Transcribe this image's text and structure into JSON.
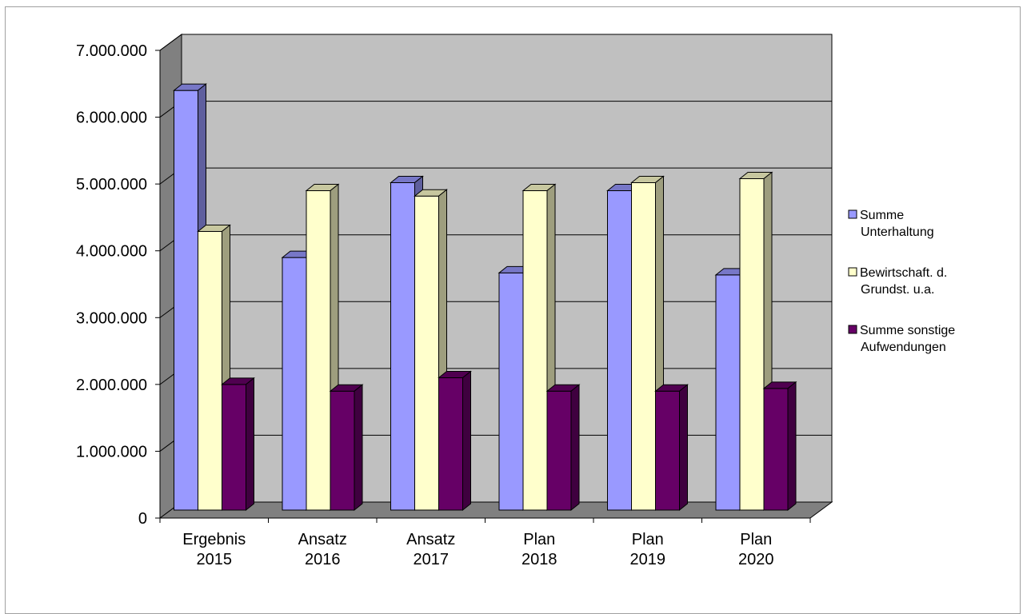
{
  "chart_data": {
    "type": "bar",
    "title": "",
    "xlabel": "",
    "ylabel": "",
    "ylim": [
      0,
      7000000
    ],
    "y_tick_step": 1000000,
    "y_tick_labels": [
      "0",
      "1.000.000",
      "2.000.000",
      "3.000.000",
      "4.000.000",
      "5.000.000",
      "6.000.000",
      "7.000.000"
    ],
    "categories": [
      [
        "Ergebnis",
        "2015"
      ],
      [
        "Ansatz",
        "2016"
      ],
      [
        "Ansatz",
        "2017"
      ],
      [
        "Plan",
        "2018"
      ],
      [
        "Plan",
        "2019"
      ],
      [
        "Plan",
        "2020"
      ]
    ],
    "grid": true,
    "style": "3d-clustered",
    "legend_position": "right",
    "series": [
      {
        "name": [
          "Summe",
          "Unterhaltung"
        ],
        "color": "#9999ff",
        "values": [
          6280000,
          3780000,
          4900000,
          3550000,
          4780000,
          3520000
        ]
      },
      {
        "name": [
          "Bewirtschaft. d.",
          "Grundst. u.a."
        ],
        "color": "#ffffcc",
        "values": [
          4170000,
          4780000,
          4700000,
          4780000,
          4900000,
          4960000
        ]
      },
      {
        "name": [
          "Summe sonstige",
          "Aufwendungen"
        ],
        "color": "#660066",
        "values": [
          1880000,
          1780000,
          1980000,
          1780000,
          1780000,
          1820000
        ]
      }
    ]
  }
}
